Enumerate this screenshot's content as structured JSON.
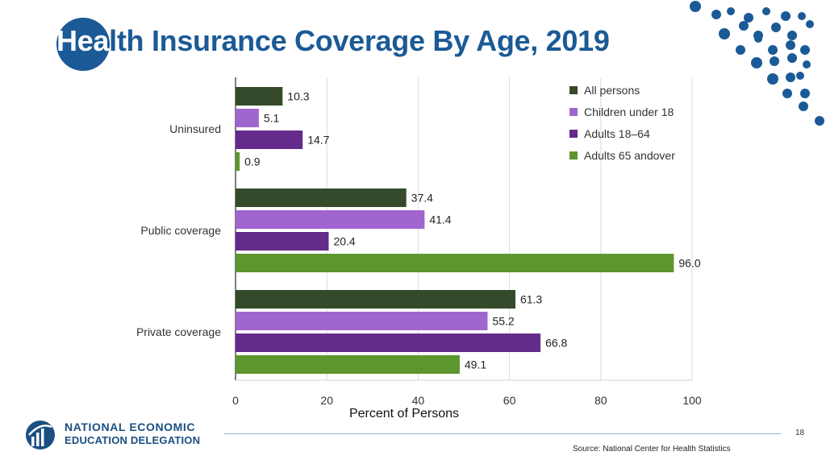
{
  "slide": {
    "title_highlight": "Hea",
    "title_rest": "lth Insurance Coverage By Age, 2019",
    "page_number": "18",
    "source": "Source: National Center for Health Statistics",
    "logo_line1": "NATIONAL ECONOMIC",
    "logo_line2": "EDUCATION DELEGATION",
    "accent_color": "#1b5a96"
  },
  "chart_data": {
    "type": "bar",
    "orientation": "horizontal",
    "title": "",
    "xlabel": "Percent of Persons",
    "ylabel": "",
    "xlim": [
      0,
      100
    ],
    "xticks": [
      "0",
      "20",
      "40",
      "60",
      "80",
      "100"
    ],
    "grid": true,
    "legend_position": "top-right",
    "categories": [
      "Uninsured",
      "Public coverage",
      "Private coverage"
    ],
    "series": [
      {
        "name": "All persons",
        "color": "#344a2b",
        "values": [
          10.3,
          37.4,
          61.3
        ],
        "labels": [
          "10.3",
          "37.4",
          "61.3"
        ]
      },
      {
        "name": "Children under 18",
        "color": "#a065cf",
        "values": [
          5.1,
          41.4,
          55.2
        ],
        "labels": [
          "5.1",
          "41.4",
          "55.2"
        ]
      },
      {
        "name": "Adults 18–64",
        "color": "#642b8a",
        "values": [
          14.7,
          20.4,
          66.8
        ],
        "labels": [
          "14.7",
          "20.4",
          "66.8"
        ]
      },
      {
        "name": "Adults 65 andover",
        "color": "#5d952e",
        "values": [
          0.9,
          96.0,
          49.1
        ],
        "labels": [
          "0.9",
          "96.0",
          "49.1"
        ]
      }
    ]
  }
}
